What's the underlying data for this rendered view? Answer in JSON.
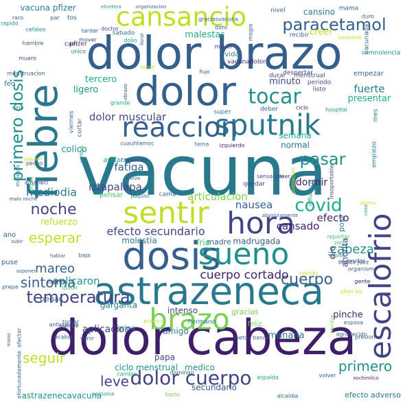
{
  "palette": {
    "dark": "#3f1f69",
    "indigo": "#414487",
    "blue": "#355f8d",
    "steel": "#2a788e",
    "teal": "#21908c",
    "green": "#22a884",
    "mint": "#44bf70",
    "lime": "#7ad151",
    "yellow": "#bddf26"
  },
  "words": [
    {
      "text": "vacuna",
      "color": "steel"
    },
    {
      "text": "dolor cabeza",
      "color": "dark"
    },
    {
      "text": "dolor brazo",
      "color": "blue"
    },
    {
      "text": "dolor",
      "color": "blue"
    },
    {
      "text": "astrazeneca",
      "color": "steel"
    },
    {
      "text": "fiebre",
      "color": "steel"
    },
    {
      "text": "escalofrio",
      "color": "indigo"
    },
    {
      "text": "dosis",
      "color": "blue"
    },
    {
      "text": "sueno",
      "color": "teal"
    },
    {
      "text": "sentir",
      "color": "yellow"
    },
    {
      "text": "hora",
      "color": "indigo"
    },
    {
      "text": "sputnik",
      "color": "steel"
    },
    {
      "text": "reaccion",
      "color": "blue"
    },
    {
      "text": "cansancio",
      "color": "yellow"
    },
    {
      "text": "brazo",
      "color": "lime"
    },
    {
      "text": "paracetamol",
      "color": "blue"
    },
    {
      "text": "tocar",
      "color": "teal"
    },
    {
      "text": "dolor cuerpo",
      "color": "indigo"
    },
    {
      "text": "primero dosis",
      "color": "teal"
    },
    {
      "text": "covid",
      "color": "green"
    },
    {
      "text": "temperatura",
      "color": "indigo"
    },
    {
      "text": "cuerpo",
      "color": "blue"
    },
    {
      "text": "pasar",
      "color": "teal"
    },
    {
      "text": "noche",
      "color": "indigo"
    },
    {
      "text": "esperar",
      "color": "yellow"
    },
    {
      "text": "sintoma",
      "color": "blue"
    },
    {
      "text": "seguir",
      "color": "yellow"
    },
    {
      "text": "leve",
      "color": "indigo"
    },
    {
      "text": "primero",
      "color": "teal"
    },
    {
      "text": "cuerpo cortado",
      "color": "dark"
    },
    {
      "text": "efecto secundario",
      "color": "indigo"
    },
    {
      "text": "cabeza",
      "color": "teal"
    },
    {
      "text": "mareo",
      "color": "blue"
    },
    {
      "text": "mediodia",
      "color": "steel"
    },
    {
      "text": "fatiga",
      "color": "blue"
    },
    {
      "text": "fuerte",
      "color": "steel"
    },
    {
      "text": "dolor muscular",
      "color": "indigo"
    },
    {
      "text": "iztapalapa",
      "color": "indigo"
    },
    {
      "text": "articulacion",
      "color": "lime"
    },
    {
      "text": "nausea",
      "color": "blue"
    },
    {
      "text": "cansado",
      "color": "dark"
    },
    {
      "text": "efecto",
      "color": "dark"
    },
    {
      "text": "aplicaron",
      "color": "teal"
    },
    {
      "text": "aplicacion",
      "color": "indigo"
    },
    {
      "text": "manana",
      "color": "steel"
    },
    {
      "text": "pinche",
      "color": "dark"
    },
    {
      "text": "dormir",
      "color": "dark"
    },
    {
      "text": "tercero",
      "color": "green"
    },
    {
      "text": "ligero",
      "color": "teal"
    },
    {
      "text": "colico",
      "color": "teal"
    },
    {
      "text": "refuerzo",
      "color": "yellow"
    },
    {
      "text": "malestar",
      "color": "green"
    },
    {
      "text": "creer",
      "color": "yellow"
    },
    {
      "text": "cansino",
      "color": "steel"
    },
    {
      "text": "minuto",
      "color": "indigo"
    },
    {
      "text": "presentar",
      "color": "green"
    },
    {
      "text": "semana",
      "color": "green"
    },
    {
      "text": "normal",
      "color": "steel"
    },
    {
      "text": "molestia",
      "color": "steel"
    },
    {
      "text": "garganta",
      "color": "steel"
    },
    {
      "text": "intenso",
      "color": "indigo"
    },
    {
      "text": "amigo",
      "color": "steel"
    },
    {
      "text": "papa",
      "color": "indigo"
    },
    {
      "text": "ciclo menstrual",
      "color": "teal"
    },
    {
      "text": "medico",
      "color": "teal"
    },
    {
      "text": "secundario",
      "color": "blue"
    },
    {
      "text": "astrazenecavacuna",
      "color": "teal"
    },
    {
      "text": "vacuna pfizer",
      "color": "steel"
    },
    {
      "text": "efecto adverso",
      "color": "steel"
    },
    {
      "text": "dio",
      "color": "indigo"
    },
    {
      "text": "ahorita",
      "color": "indigo"
    },
    {
      "text": "post",
      "color": "steel"
    },
    {
      "text": "frio",
      "color": "mint"
    },
    {
      "text": "madrugada",
      "color": "blue"
    },
    {
      "text": "madre",
      "color": "blue"
    },
    {
      "text": "gracias",
      "color": "lime"
    },
    {
      "text": "feliz",
      "color": "lime"
    },
    {
      "text": "pegar",
      "color": "blue"
    },
    {
      "text": "empezar",
      "color": "blue"
    },
    {
      "text": "empiezo",
      "color": "steel"
    },
    {
      "text": "mes",
      "color": "steel"
    },
    {
      "text": "vida",
      "color": "steel"
    },
    {
      "text": "vacunadolor",
      "color": "dark"
    },
    {
      "text": "super",
      "color": "steel"
    },
    {
      "text": "deber",
      "color": "blue"
    },
    {
      "text": "andar",
      "color": "green"
    },
    {
      "text": "pensar",
      "color": "mint"
    },
    {
      "text": "gripa",
      "color": "steel"
    },
    {
      "text": "feo",
      "color": "blue"
    },
    {
      "text": "ano",
      "color": "blue"
    },
    {
      "text": "puse",
      "color": "blue"
    },
    {
      "text": "cama",
      "color": "blue"
    },
    {
      "text": "quedar",
      "color": "indigo"
    },
    {
      "text": "hermano",
      "color": "steel"
    },
    {
      "text": "mama",
      "color": "blue"
    },
    {
      "text": "nivel",
      "color": "blue"
    },
    {
      "text": "recibir",
      "color": "blue"
    },
    {
      "text": "menstrual",
      "color": "indigo"
    },
    {
      "text": "periodo",
      "color": "indigo"
    },
    {
      "text": "listo",
      "color": "indigo"
    },
    {
      "text": "durar",
      "color": "indigo"
    },
    {
      "text": "despertar",
      "color": "indigo"
    },
    {
      "text": "sabado",
      "color": "steel"
    },
    {
      "text": "pfizer",
      "color": "dark"
    },
    {
      "text": "caer",
      "color": "dark"
    },
    {
      "text": "unico",
      "color": "steel"
    },
    {
      "text": "mover",
      "color": "indigo"
    },
    {
      "text": "doctor",
      "color": "indigo"
    },
    {
      "text": "miedo",
      "color": "indigo"
    },
    {
      "text": "dolio",
      "color": "green"
    },
    {
      "text": "cuauhtemoc",
      "color": "blue"
    },
    {
      "text": "coyoacan",
      "color": "indigo"
    },
    {
      "text": "tema",
      "color": "steel"
    },
    {
      "text": "izquierdo",
      "color": "dark"
    },
    {
      "text": "hospital",
      "color": "teal"
    },
    {
      "text": "ciclo",
      "color": "dark"
    },
    {
      "text": "sensacion",
      "color": "indigo"
    },
    {
      "text": "leer",
      "color": "indigo"
    },
    {
      "text": "reportar",
      "color": "mint"
    },
    {
      "text": "zona",
      "color": "mint"
    },
    {
      "text": "benito juez",
      "color": "indigo"
    },
    {
      "text": "quito",
      "color": "steel"
    },
    {
      "text": "ayudar",
      "color": "blue"
    },
    {
      "text": "organismo",
      "color": "blue"
    },
    {
      "text": "gente",
      "color": "dark"
    },
    {
      "text": "esposa",
      "color": "blue"
    },
    {
      "text": "agradecido",
      "color": "blue"
    },
    {
      "text": "presion",
      "color": "blue"
    },
    {
      "text": "volver",
      "color": "blue"
    },
    {
      "text": "xochimilco",
      "color": "dark"
    },
    {
      "text": "alcaldia",
      "color": "blue"
    },
    {
      "text": "persona",
      "color": "green"
    },
    {
      "text": "harto",
      "color": "lime"
    },
    {
      "text": "cambio",
      "color": "green"
    },
    {
      "text": "domingo",
      "color": "blue"
    },
    {
      "text": "neta",
      "color": "blue"
    },
    {
      "text": "bano",
      "color": "blue"
    },
    {
      "text": "espalda",
      "color": "green"
    },
    {
      "text": "acabar",
      "color": "blue"
    },
    {
      "text": "venir",
      "color": "blue"
    },
    {
      "text": "afortunadamente",
      "color": "blue"
    },
    {
      "text": "afectar",
      "color": "blue"
    },
    {
      "text": "mano",
      "color": "blue"
    },
    {
      "text": "jueves",
      "color": "indigo"
    },
    {
      "text": "tomar",
      "color": "blue"
    },
    {
      "text": "anticuerpo",
      "color": "blue"
    },
    {
      "text": "placebo",
      "color": "indigo"
    },
    {
      "text": "prepa",
      "color": "blue"
    },
    {
      "text": "quitar",
      "color": "mint"
    },
    {
      "text": "suponer",
      "color": "blue"
    },
    {
      "text": "subir",
      "color": "blue"
    },
    {
      "text": "hablar",
      "color": "blue"
    },
    {
      "text": "baja",
      "color": "blue"
    },
    {
      "text": "amaneci",
      "color": "indigo"
    },
    {
      "text": "agua",
      "color": "mint"
    },
    {
      "text": "molesto",
      "color": "steel"
    },
    {
      "text": "pecho",
      "color": "blue"
    },
    {
      "text": "alguien",
      "color": "yellow"
    },
    {
      "text": "vivo",
      "color": "blue"
    },
    {
      "text": "poquito",
      "color": "steel"
    },
    {
      "text": "malo noche",
      "color": "blue"
    },
    {
      "text": "absolutamente",
      "color": "blue"
    },
    {
      "text": "horrible",
      "color": "lime"
    },
    {
      "text": "poblacion",
      "color": "yellow"
    },
    {
      "text": "influenza",
      "color": "teal"
    },
    {
      "text": "insoportable",
      "color": "indigo"
    },
    {
      "text": "cosa",
      "color": "teal"
    },
    {
      "text": "pierna",
      "color": "yellow"
    },
    {
      "text": "cortar",
      "color": "blue"
    },
    {
      "text": "viernes",
      "color": "blue"
    },
    {
      "text": "vertigo",
      "color": "teal"
    },
    {
      "text": "abrazo",
      "color": "indigo"
    },
    {
      "text": "grande",
      "color": "green"
    },
    {
      "text": "flujo",
      "color": "indigo"
    },
    {
      "text": "morir",
      "color": "yellow"
    },
    {
      "text": "vino",
      "color": "teal"
    },
    {
      "text": "menstruacion",
      "color": "blue"
    },
    {
      "text": "muero",
      "color": "indigo"
    },
    {
      "text": "hambre",
      "color": "blue"
    },
    {
      "text": "rapido",
      "color": "teal"
    },
    {
      "text": "raro",
      "color": "blue"
    },
    {
      "text": "cefaleo",
      "color": "teal"
    },
    {
      "text": "par",
      "color": "blue"
    },
    {
      "text": "tos",
      "color": "blue"
    },
    {
      "text": "tardar",
      "color": "blue"
    },
    {
      "text": "etcetera",
      "color": "teal"
    },
    {
      "text": "organizacion",
      "color": "blue"
    },
    {
      "text": "graciasvacuna",
      "color": "blue"
    },
    {
      "text": "dato",
      "color": "blue"
    },
    {
      "text": "magia",
      "color": "blue"
    },
    {
      "text": "duro",
      "color": "blue"
    },
    {
      "text": "constante",
      "color": "yellow"
    },
    {
      "text": "somnolencia",
      "color": "teal"
    },
    {
      "text": "vacunada",
      "color": "blue"
    },
    {
      "text": "llorar",
      "color": "blue"
    },
    {
      "text": "pfizer bio",
      "color": "yellow"
    },
    {
      "text": "nomas",
      "color": "yellow"
    },
    {
      "text": "provocar",
      "color": "yellow"
    },
    {
      "text": "culpe",
      "color": "mint"
    }
  ]
}
